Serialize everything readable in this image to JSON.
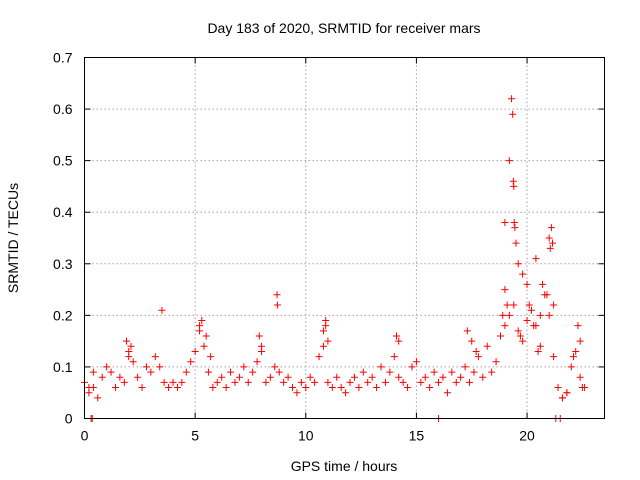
{
  "chart_data": {
    "type": "scatter",
    "title": "Day 183 of 2020, SRMTID for receiver mars",
    "xlabel": "GPS time / hours",
    "ylabel": "SRMTID / TECUs",
    "xlim": [
      0,
      23.5
    ],
    "ylim": [
      0,
      0.7
    ],
    "xticks": [
      0,
      5,
      10,
      15,
      20
    ],
    "xtick_labels": [
      "0",
      "5",
      "10",
      "15",
      "20"
    ],
    "yticks": [
      0,
      0.1,
      0.2,
      0.3,
      0.4,
      0.5,
      0.6,
      0.7
    ],
    "ytick_labels": [
      "0",
      "0.1",
      "0.2",
      "0.3",
      "0.4",
      "0.5",
      "0.6",
      "0.7"
    ],
    "grid": true,
    "marker": "+",
    "color": "#ff0000",
    "series": [
      {
        "name": "SRMTID",
        "x": [
          0.0,
          0.2,
          0.4,
          0.6,
          0.8,
          1.0,
          1.2,
          1.4,
          1.6,
          1.8,
          2.0,
          2.2,
          2.4,
          2.6,
          2.8,
          3.0,
          3.2,
          3.4,
          3.6,
          3.8,
          4.0,
          4.2,
          4.4,
          4.6,
          4.8,
          5.0,
          5.2,
          5.4,
          5.6,
          5.8,
          6.0,
          6.2,
          6.4,
          6.6,
          6.8,
          7.0,
          7.2,
          7.4,
          7.6,
          7.8,
          8.0,
          8.2,
          8.4,
          8.6,
          8.8,
          9.0,
          9.2,
          9.4,
          9.6,
          9.8,
          10.0,
          10.2,
          10.4,
          10.6,
          10.8,
          11.0,
          11.2,
          11.4,
          11.6,
          11.8,
          12.0,
          12.2,
          12.4,
          12.6,
          12.8,
          13.0,
          13.2,
          13.4,
          13.6,
          13.8,
          14.0,
          14.2,
          14.4,
          14.6,
          14.8,
          15.0,
          15.2,
          15.4,
          15.6,
          15.8,
          16.0,
          16.2,
          16.4,
          16.6,
          16.8,
          17.0,
          17.2,
          17.4,
          17.6,
          17.8,
          18.0,
          18.2,
          18.4,
          18.6,
          18.8,
          19.0,
          19.2,
          19.4,
          19.6,
          19.8,
          20.0,
          20.2,
          20.4,
          20.6,
          20.8,
          21.0,
          21.2,
          21.4,
          21.6,
          21.8,
          22.0,
          22.2,
          22.4,
          22.6,
          0.3,
          0.35,
          3.5,
          8.7,
          8.72,
          10.9,
          19.0,
          19.2,
          19.3,
          19.35,
          19.38,
          19.4,
          19.42,
          19.45,
          19.5,
          19.6,
          19.8,
          20.0,
          20.4,
          20.7,
          21.0,
          21.05,
          21.1,
          21.15,
          22.3,
          22.4,
          16.0,
          21.3,
          21.5,
          0.2,
          0.4,
          1.9,
          2.0,
          2.1,
          5.2,
          5.3,
          5.5,
          5.7,
          7.9,
          8.0,
          10.8,
          10.9,
          11.0,
          14.1,
          14.2,
          17.3,
          17.5,
          17.7,
          18.9,
          19.0,
          19.1,
          19.7,
          20.1,
          20.3,
          20.5,
          20.6,
          20.9,
          21.2,
          21.6,
          21.8,
          22.1,
          22.5
        ],
        "y": [
          0.07,
          0.05,
          0.06,
          0.04,
          0.08,
          0.1,
          0.09,
          0.06,
          0.08,
          0.07,
          0.12,
          0.11,
          0.08,
          0.06,
          0.1,
          0.09,
          0.12,
          0.1,
          0.07,
          0.06,
          0.07,
          0.06,
          0.07,
          0.09,
          0.11,
          0.13,
          0.17,
          0.14,
          0.09,
          0.06,
          0.07,
          0.08,
          0.06,
          0.09,
          0.07,
          0.08,
          0.1,
          0.07,
          0.09,
          0.11,
          0.13,
          0.07,
          0.08,
          0.1,
          0.09,
          0.07,
          0.08,
          0.06,
          0.05,
          0.07,
          0.06,
          0.08,
          0.07,
          0.12,
          0.14,
          0.07,
          0.06,
          0.08,
          0.06,
          0.05,
          0.07,
          0.08,
          0.06,
          0.09,
          0.07,
          0.08,
          0.06,
          0.1,
          0.07,
          0.09,
          0.12,
          0.08,
          0.07,
          0.06,
          0.1,
          0.11,
          0.07,
          0.08,
          0.06,
          0.09,
          0.07,
          0.08,
          0.05,
          0.09,
          0.07,
          0.08,
          0.1,
          0.07,
          0.09,
          0.12,
          0.08,
          0.14,
          0.09,
          0.11,
          0.16,
          0.18,
          0.2,
          0.22,
          0.17,
          0.15,
          0.19,
          0.21,
          0.18,
          0.14,
          0.24,
          0.2,
          0.12,
          0.06,
          0.04,
          0.05,
          0.1,
          0.13,
          0.08,
          0.06,
          0.0,
          0.0,
          0.21,
          0.24,
          0.22,
          0.18,
          0.38,
          0.5,
          0.62,
          0.59,
          0.46,
          0.45,
          0.38,
          0.37,
          0.34,
          0.3,
          0.28,
          0.26,
          0.31,
          0.26,
          0.35,
          0.33,
          0.37,
          0.34,
          0.18,
          0.15,
          0.0,
          0.0,
          0.0,
          0.06,
          0.09,
          0.15,
          0.13,
          0.14,
          0.18,
          0.19,
          0.16,
          0.12,
          0.16,
          0.14,
          0.17,
          0.19,
          0.15,
          0.16,
          0.15,
          0.17,
          0.15,
          0.13,
          0.2,
          0.25,
          0.22,
          0.16,
          0.22,
          0.18,
          0.13,
          0.2,
          0.24,
          0.22,
          0.04,
          0.05,
          0.12,
          0.06
        ]
      }
    ]
  }
}
